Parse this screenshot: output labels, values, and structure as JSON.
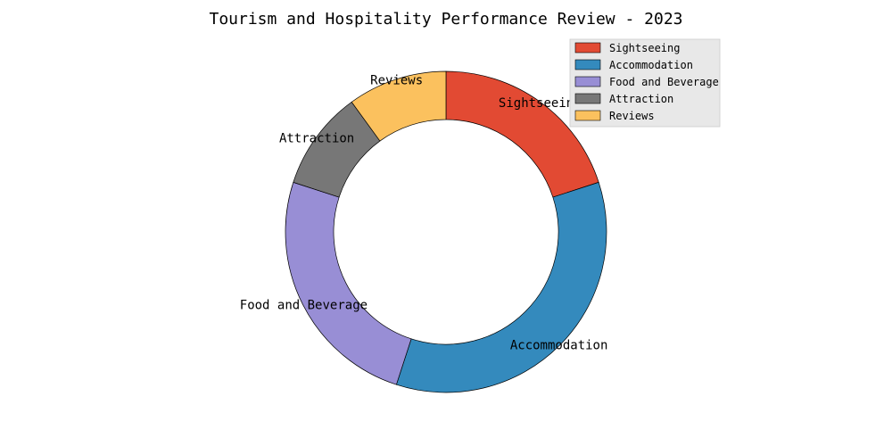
{
  "chart_data": {
    "type": "pie",
    "style": "donut",
    "title": "Tourism and Hospitality Performance Review - 2023",
    "slices": [
      {
        "label": "Sightseeing",
        "value": 20,
        "color": "#E24A33"
      },
      {
        "label": "Accommodation",
        "value": 35,
        "color": "#348ABD"
      },
      {
        "label": "Food and Beverage",
        "value": 25,
        "color": "#988ED5"
      },
      {
        "label": "Attraction",
        "value": 10,
        "color": "#777777"
      },
      {
        "label": "Reviews",
        "value": 10,
        "color": "#FBC15E"
      }
    ],
    "legend": {
      "placement": "top-right",
      "entries": [
        "Sightseeing",
        "Accommodation",
        "Food and Beverage",
        "Attraction",
        "Reviews"
      ]
    }
  }
}
